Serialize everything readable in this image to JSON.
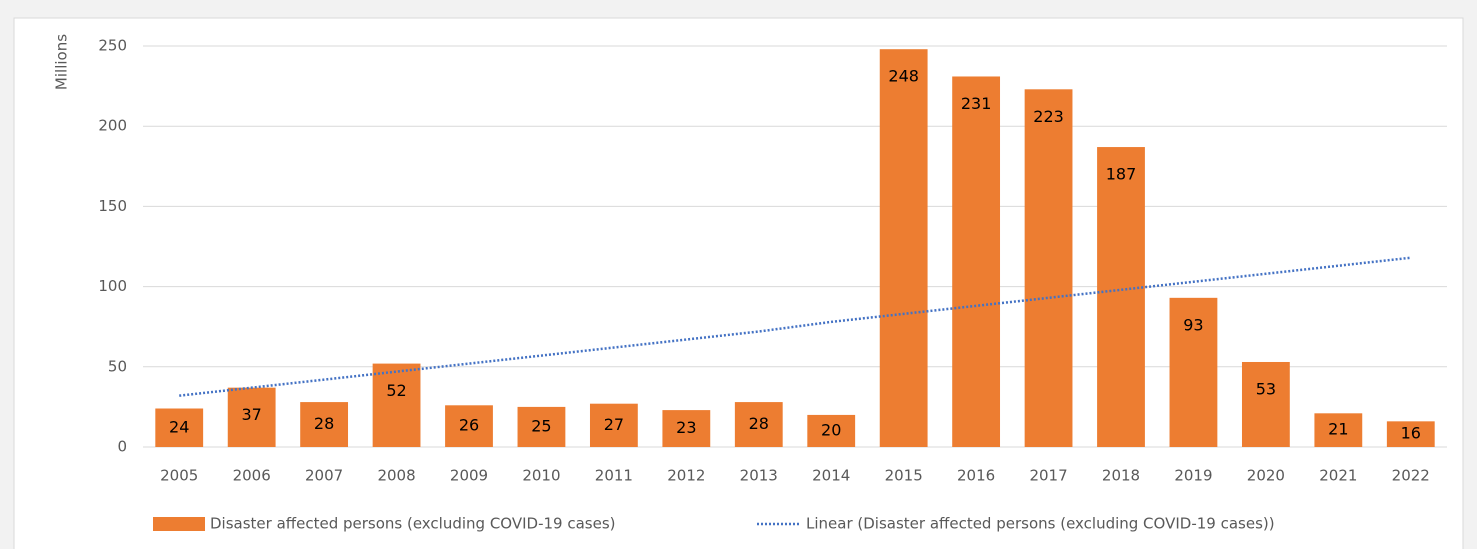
{
  "chart_data": {
    "type": "bar",
    "y_axis_label": "Millions",
    "categories": [
      "2005",
      "2006",
      "2007",
      "2008",
      "2009",
      "2010",
      "2011",
      "2012",
      "2013",
      "2014",
      "2015",
      "2016",
      "2017",
      "2018",
      "2019",
      "2020",
      "2021",
      "2022"
    ],
    "series": [
      {
        "name": "Disaster affected persons (excluding COVID-19 cases)",
        "color": "#ed7d31",
        "values": [
          24,
          37,
          28,
          52,
          26,
          25,
          27,
          23,
          28,
          20,
          248,
          231,
          223,
          187,
          93,
          53,
          21,
          16
        ]
      },
      {
        "name": "Linear (Disaster affected persons (excluding COVID-19 cases))",
        "color": "#4472c4",
        "style": "dotted",
        "values": [
          32,
          37,
          42,
          47,
          52,
          57,
          62,
          67,
          72,
          78,
          83,
          88,
          93,
          98,
          103,
          108,
          113,
          118
        ]
      }
    ],
    "ylim": [
      0,
      250
    ],
    "yticks": [
      0,
      50,
      100,
      150,
      200,
      250
    ],
    "grid": true,
    "legend": "bottom"
  }
}
